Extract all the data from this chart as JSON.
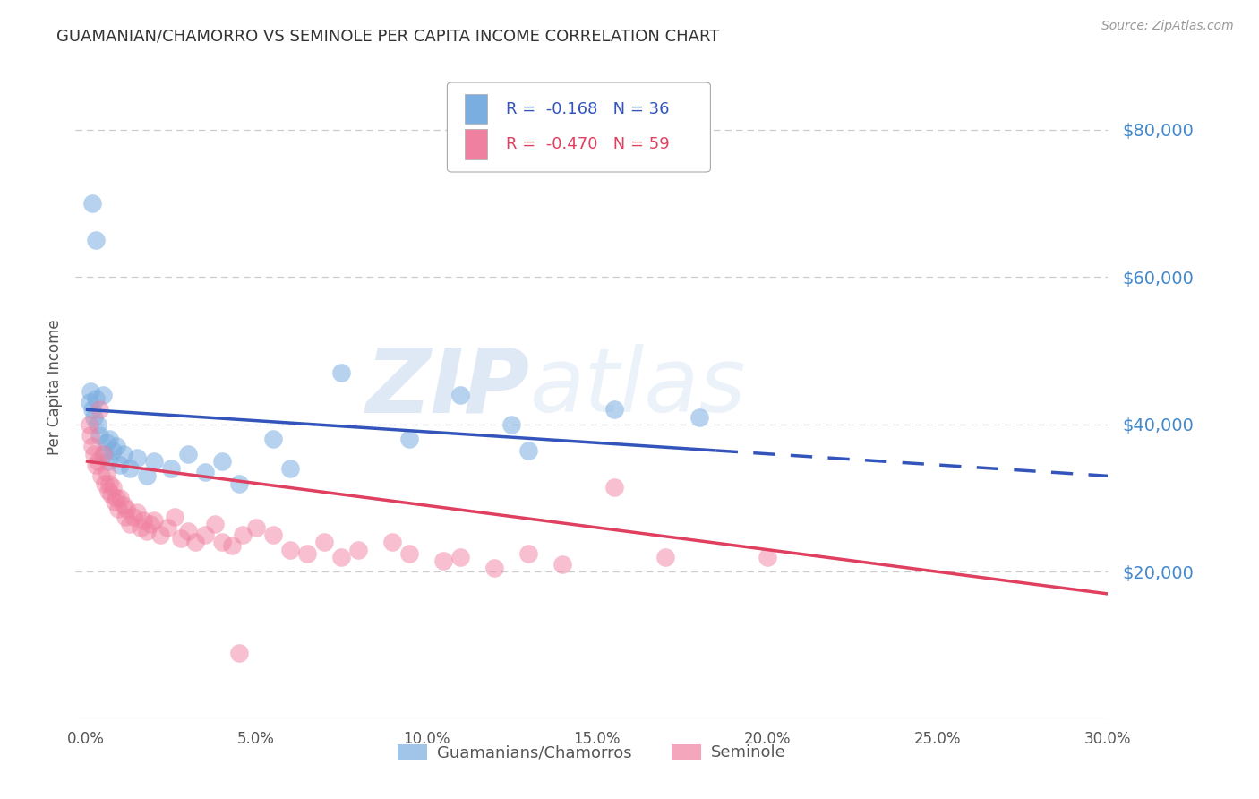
{
  "title": "GUAMANIAN/CHAMORRO VS SEMINOLE PER CAPITA INCOME CORRELATION CHART",
  "source": "Source: ZipAtlas.com",
  "ylabel": "Per Capita Income",
  "xlabel_ticks": [
    "0.0%",
    "5.0%",
    "10.0%",
    "15.0%",
    "20.0%",
    "25.0%",
    "30.0%"
  ],
  "xlabel_vals": [
    0.0,
    5.0,
    10.0,
    15.0,
    20.0,
    25.0,
    30.0
  ],
  "xlim": [
    -0.3,
    30.0
  ],
  "ylim": [
    0,
    90000
  ],
  "yticks_right": [
    20000,
    40000,
    60000,
    80000
  ],
  "ytick_labels_right": [
    "$20,000",
    "$40,000",
    "$60,000",
    "$80,000"
  ],
  "grid_color": "#cccccc",
  "background_color": "#ffffff",
  "watermark_zip": "ZIP",
  "watermark_atlas": "atlas",
  "legend_label1": "Guamanians/Chamorros",
  "legend_label2": "Seminole",
  "blue_color": "#7aade0",
  "pink_color": "#f080a0",
  "blue_line_color": "#3355bb",
  "pink_line_color": "#e04060",
  "blue_scatter": [
    [
      0.1,
      43000
    ],
    [
      0.15,
      44500
    ],
    [
      0.2,
      42000
    ],
    [
      0.25,
      41000
    ],
    [
      0.3,
      43500
    ],
    [
      0.35,
      40000
    ],
    [
      0.4,
      38500
    ],
    [
      0.5,
      44000
    ],
    [
      0.55,
      36000
    ],
    [
      0.6,
      37500
    ],
    [
      0.65,
      35000
    ],
    [
      0.7,
      38000
    ],
    [
      0.8,
      36500
    ],
    [
      0.9,
      37000
    ],
    [
      1.0,
      34500
    ],
    [
      1.1,
      36000
    ],
    [
      1.3,
      34000
    ],
    [
      1.5,
      35500
    ],
    [
      1.8,
      33000
    ],
    [
      2.0,
      35000
    ],
    [
      2.5,
      34000
    ],
    [
      3.0,
      36000
    ],
    [
      3.5,
      33500
    ],
    [
      4.0,
      35000
    ],
    [
      4.5,
      32000
    ],
    [
      5.5,
      38000
    ],
    [
      6.0,
      34000
    ],
    [
      7.5,
      47000
    ],
    [
      9.5,
      38000
    ],
    [
      11.0,
      44000
    ],
    [
      12.5,
      40000
    ],
    [
      13.0,
      36500
    ],
    [
      15.5,
      42000
    ],
    [
      18.0,
      41000
    ],
    [
      0.2,
      70000
    ],
    [
      0.3,
      65000
    ]
  ],
  "pink_scatter": [
    [
      0.1,
      40000
    ],
    [
      0.15,
      38500
    ],
    [
      0.2,
      37000
    ],
    [
      0.25,
      36000
    ],
    [
      0.3,
      34500
    ],
    [
      0.35,
      35000
    ],
    [
      0.4,
      42000
    ],
    [
      0.45,
      33000
    ],
    [
      0.5,
      36000
    ],
    [
      0.55,
      32000
    ],
    [
      0.6,
      33500
    ],
    [
      0.65,
      31000
    ],
    [
      0.7,
      32000
    ],
    [
      0.75,
      30500
    ],
    [
      0.8,
      31500
    ],
    [
      0.85,
      29500
    ],
    [
      0.9,
      30000
    ],
    [
      0.95,
      28500
    ],
    [
      1.0,
      30000
    ],
    [
      1.1,
      29000
    ],
    [
      1.15,
      27500
    ],
    [
      1.2,
      28500
    ],
    [
      1.3,
      26500
    ],
    [
      1.4,
      27500
    ],
    [
      1.5,
      28000
    ],
    [
      1.6,
      26000
    ],
    [
      1.7,
      27000
    ],
    [
      1.8,
      25500
    ],
    [
      1.9,
      26500
    ],
    [
      2.0,
      27000
    ],
    [
      2.2,
      25000
    ],
    [
      2.4,
      26000
    ],
    [
      2.6,
      27500
    ],
    [
      2.8,
      24500
    ],
    [
      3.0,
      25500
    ],
    [
      3.2,
      24000
    ],
    [
      3.5,
      25000
    ],
    [
      3.8,
      26500
    ],
    [
      4.0,
      24000
    ],
    [
      4.3,
      23500
    ],
    [
      4.6,
      25000
    ],
    [
      5.0,
      26000
    ],
    [
      5.5,
      25000
    ],
    [
      6.0,
      23000
    ],
    [
      6.5,
      22500
    ],
    [
      7.0,
      24000
    ],
    [
      7.5,
      22000
    ],
    [
      8.0,
      23000
    ],
    [
      9.0,
      24000
    ],
    [
      9.5,
      22500
    ],
    [
      10.5,
      21500
    ],
    [
      11.0,
      22000
    ],
    [
      12.0,
      20500
    ],
    [
      13.0,
      22500
    ],
    [
      14.0,
      21000
    ],
    [
      15.5,
      31500
    ],
    [
      17.0,
      22000
    ],
    [
      20.0,
      22000
    ],
    [
      4.5,
      9000
    ]
  ],
  "blue_solid_end_x": 18.5,
  "blue_line_x0": 0.0,
  "blue_line_y0": 42000,
  "blue_line_x1": 30.0,
  "blue_line_y1": 33000,
  "pink_line_x0": 0.0,
  "pink_line_y0": 35000,
  "pink_line_x1": 30.0,
  "pink_line_y1": 17000
}
